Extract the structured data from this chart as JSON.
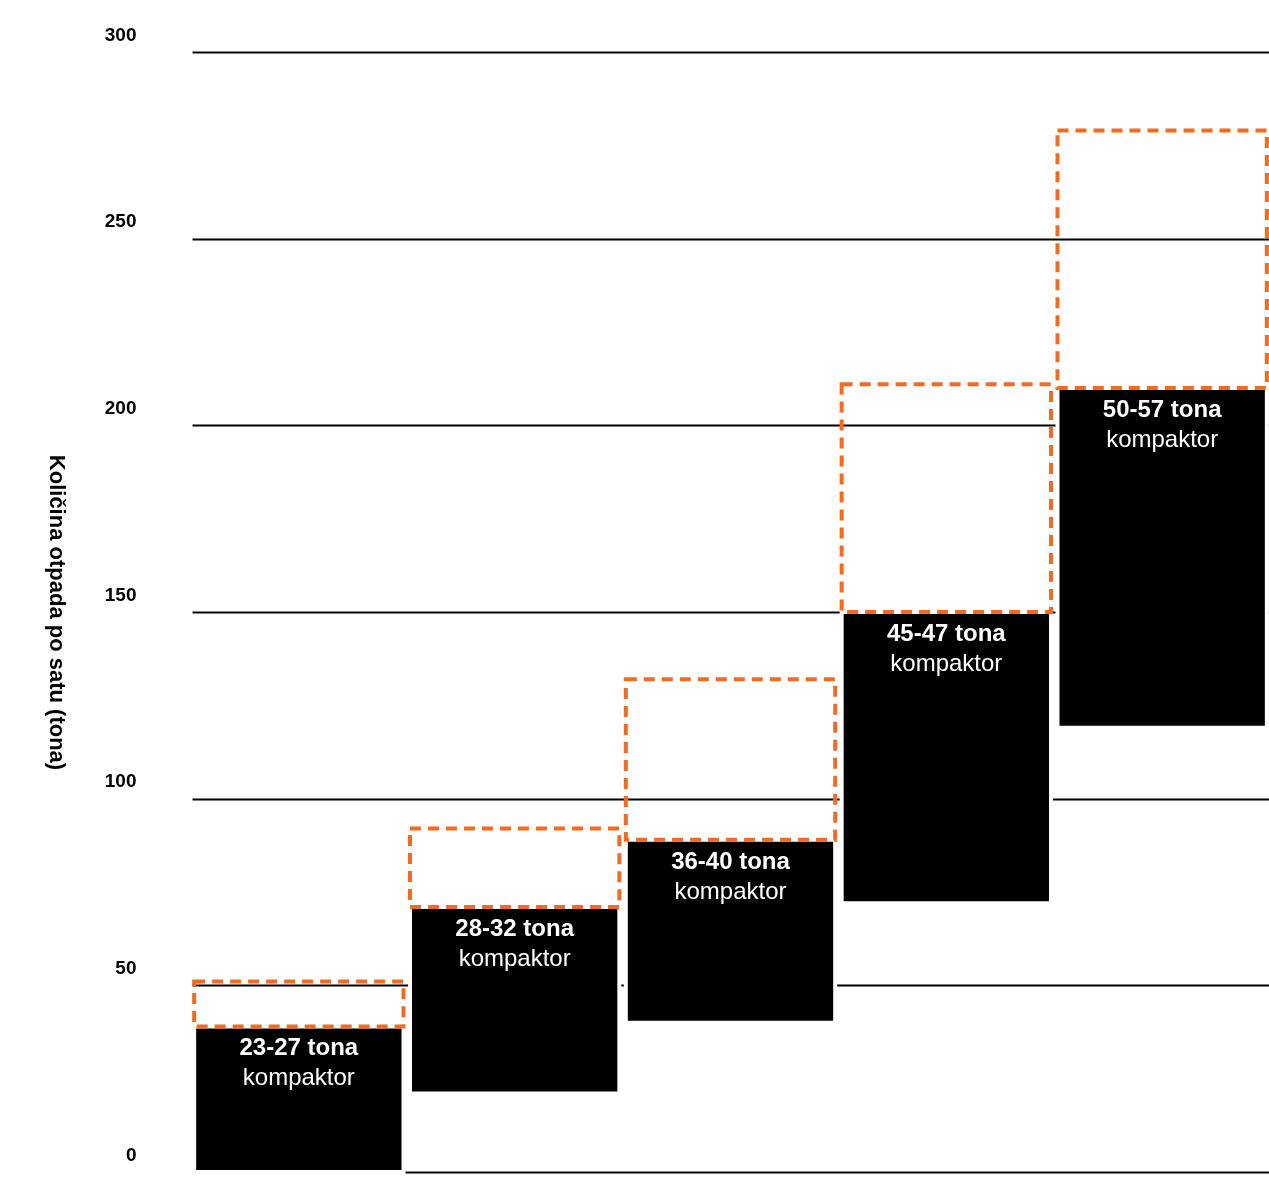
{
  "chart_data": {
    "type": "bar",
    "ylabel": "Količina otpada po satu (tona)",
    "categories": [
      "23-27 tona\nkompaktor",
      "28-32 tona\nkompaktor",
      "36-40 tona\nkompaktor",
      "45-47 tona\nkompaktor",
      "50-57 tona\nkompaktor"
    ],
    "series": [
      {
        "color": "#000000",
        "base": [
          0,
          21,
          40,
          72,
          119
        ],
        "values": [
          39,
          50,
          49,
          78,
          91
        ]
      },
      {
        "color": "#f26b21",
        "line_style": "dashed",
        "base": [
          39,
          71,
          89,
          150,
          210
        ],
        "values": [
          12,
          21,
          43,
          61,
          69
        ]
      }
    ],
    "ylim": [
      0,
      300
    ],
    "yticks": [
      0,
      50,
      100,
      150,
      200,
      250,
      300
    ],
    "grid": "y",
    "tick_labels": "y"
  }
}
